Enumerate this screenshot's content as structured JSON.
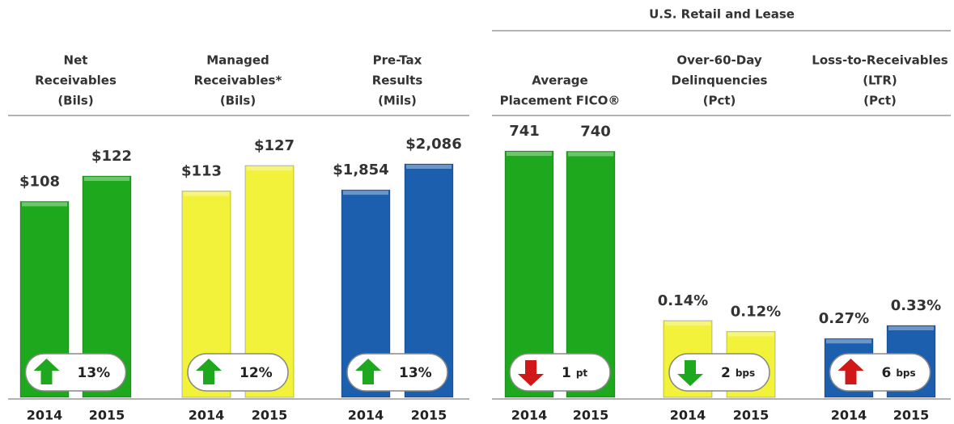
{
  "group_title": "U.S. Retail and Lease",
  "chart_data": [
    {
      "type": "bar",
      "title": [
        "Net",
        "Receivables",
        "(Bils)"
      ],
      "categories": [
        "2014",
        "2015"
      ],
      "values": [
        108,
        122
      ],
      "value_labels": [
        "$108",
        "$122"
      ],
      "color": "#1ea81e",
      "badge": {
        "text": "13%",
        "direction": "up",
        "arrow_color": "#1ea81e"
      }
    },
    {
      "type": "bar",
      "title": [
        "Managed",
        "Receivables*",
        "(Bils)"
      ],
      "categories": [
        "2014",
        "2015"
      ],
      "values": [
        113,
        127
      ],
      "value_labels": [
        "$113",
        "$127"
      ],
      "color": "#f2f23a",
      "badge": {
        "text": "12%",
        "direction": "up",
        "arrow_color": "#1ea81e"
      }
    },
    {
      "type": "bar",
      "title": [
        "Pre-Tax",
        "Results",
        "(Mils)"
      ],
      "categories": [
        "2014",
        "2015"
      ],
      "values": [
        1854,
        2086
      ],
      "value_labels": [
        "$1,854",
        "$2,086"
      ],
      "color": "#1b5fae",
      "badge": {
        "text": "13%",
        "direction": "up",
        "arrow_color": "#1ea81e"
      }
    },
    {
      "type": "bar",
      "title": [
        "Average",
        "Placement FICO®"
      ],
      "categories": [
        "2014",
        "2015"
      ],
      "values": [
        741,
        740
      ],
      "color": "#1ea81e",
      "badge": {
        "text": "1",
        "unit": "pt",
        "direction": "down",
        "arrow_color": "#d01818"
      }
    },
    {
      "type": "bar",
      "title": [
        "Over-60-Day",
        "Delinquencies",
        "(Pct)"
      ],
      "categories": [
        "2014",
        "2015"
      ],
      "values": [
        0.14,
        0.12
      ],
      "value_labels": [
        "0.14%",
        "0.12%"
      ],
      "color": "#f2f23a",
      "badge": {
        "text": "2",
        "unit": "bps",
        "direction": "down",
        "arrow_color": "#1ea81e"
      }
    },
    {
      "type": "bar",
      "title": [
        "Loss-to-Receivables",
        "(LTR)",
        "(Pct)"
      ],
      "categories": [
        "2014",
        "2015"
      ],
      "values": [
        0.27,
        0.33
      ],
      "value_labels": [
        "0.27%",
        "0.33%"
      ],
      "color": "#1b5fae",
      "badge": {
        "text": "6",
        "unit": "bps",
        "direction": "up",
        "arrow_color": "#d01818"
      }
    }
  ]
}
